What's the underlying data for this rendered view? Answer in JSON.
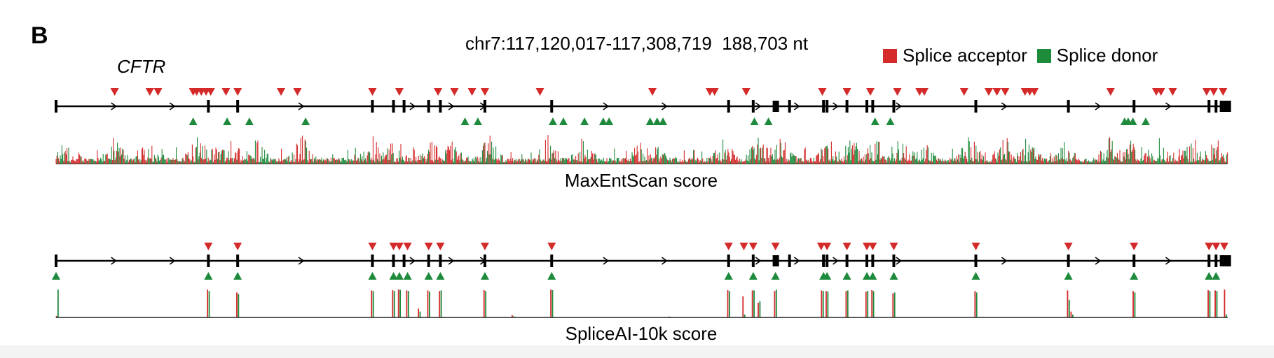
{
  "panel_label": "B",
  "coordinates": "chr7:117,120,017-117,308,719  188,703 nt",
  "gene_name": "CFTR",
  "legend": {
    "acceptor": "Splice acceptor",
    "donor": "Splice donor"
  },
  "colors": {
    "acceptor": "#d42a2a",
    "donor": "#1e8a3c",
    "line": "#000000"
  },
  "tracks": [
    {
      "id": "maxentscan",
      "label": "MaxEntScan score"
    },
    {
      "id": "spliceai",
      "label": "SpliceAI-10k score"
    }
  ],
  "chart_data": {
    "type": "track",
    "genomic_range": [
      "117,120,017",
      "117,308,719"
    ],
    "length_nt": 188703,
    "exons": [
      0.0,
      0.13,
      0.155,
      0.27,
      0.288,
      0.297,
      0.318,
      0.328,
      0.366,
      0.423,
      0.574,
      0.595,
      0.614,
      0.626,
      0.655,
      0.658,
      0.675,
      0.692,
      0.697,
      0.715,
      0.785,
      0.864,
      0.92,
      0.984,
      0.99,
      0.998
    ],
    "tracks": [
      {
        "name": "MaxEntScan score",
        "acceptors": [
          0.05,
          0.08,
          0.087,
          0.117,
          0.12,
          0.124,
          0.128,
          0.132,
          0.145,
          0.155,
          0.192,
          0.206,
          0.27,
          0.293,
          0.326,
          0.34,
          0.355,
          0.366,
          0.413,
          0.509,
          0.558,
          0.562,
          0.589,
          0.654,
          0.675,
          0.695,
          0.718,
          0.737,
          0.741,
          0.775,
          0.796,
          0.803,
          0.81,
          0.827,
          0.831,
          0.835,
          0.9,
          0.939,
          0.943,
          0.953,
          0.982,
          0.988,
          0.996
        ],
        "donors": [
          0.117,
          0.146,
          0.165,
          0.213,
          0.349,
          0.36,
          0.424,
          0.433,
          0.451,
          0.467,
          0.472,
          0.507,
          0.513,
          0.518,
          0.596,
          0.608,
          0.699,
          0.712,
          0.912,
          0.915,
          0.919,
          0.93
        ]
      },
      {
        "name": "SpliceAI-10k score",
        "acceptors": [
          0.13,
          0.155,
          0.27,
          0.288,
          0.293,
          0.3,
          0.318,
          0.328,
          0.366,
          0.423,
          0.574,
          0.587,
          0.595,
          0.614,
          0.653,
          0.658,
          0.675,
          0.692,
          0.697,
          0.715,
          0.785,
          0.864,
          0.92,
          0.984,
          0.99,
          0.997
        ],
        "donors": [
          0.0,
          0.13,
          0.155,
          0.27,
          0.288,
          0.293,
          0.3,
          0.318,
          0.328,
          0.366,
          0.423,
          0.574,
          0.595,
          0.614,
          0.655,
          0.658,
          0.675,
          0.692,
          0.697,
          0.715,
          0.785,
          0.864,
          0.92,
          0.984,
          0.99
        ]
      }
    ],
    "spliceai_peaks": [
      {
        "x": 0.001,
        "acc": 0.05,
        "don": 0.95
      },
      {
        "x": 0.13,
        "acc": 0.95,
        "don": 0.9
      },
      {
        "x": 0.155,
        "acc": 0.85,
        "don": 0.8
      },
      {
        "x": 0.27,
        "acc": 0.92,
        "don": 0.9
      },
      {
        "x": 0.288,
        "acc": 0.93,
        "don": 0.9
      },
      {
        "x": 0.293,
        "acc": 0.95,
        "don": 0.94
      },
      {
        "x": 0.3,
        "acc": 0.92,
        "don": 0.9
      },
      {
        "x": 0.31,
        "acc": 0.3,
        "don": 0.2
      },
      {
        "x": 0.318,
        "acc": 0.92,
        "don": 0.88
      },
      {
        "x": 0.328,
        "acc": 0.9,
        "don": 0.92
      },
      {
        "x": 0.366,
        "acc": 0.93,
        "don": 0.9
      },
      {
        "x": 0.39,
        "acc": 0.08,
        "don": 0.04
      },
      {
        "x": 0.423,
        "acc": 0.95,
        "don": 0.93
      },
      {
        "x": 0.524,
        "acc": 0.03,
        "don": 0.02
      },
      {
        "x": 0.574,
        "acc": 0.93,
        "don": 0.9
      },
      {
        "x": 0.587,
        "acc": 0.72,
        "don": 0.1
      },
      {
        "x": 0.595,
        "acc": 0.92,
        "don": 0.92
      },
      {
        "x": 0.6,
        "acc": 0.5,
        "don": 0.55
      },
      {
        "x": 0.614,
        "acc": 0.9,
        "don": 0.95
      },
      {
        "x": 0.654,
        "acc": 0.92,
        "don": 0.9
      },
      {
        "x": 0.658,
        "acc": 0.9,
        "don": 0.88
      },
      {
        "x": 0.675,
        "acc": 0.9,
        "don": 0.92
      },
      {
        "x": 0.692,
        "acc": 0.88,
        "don": 0.9
      },
      {
        "x": 0.697,
        "acc": 0.93,
        "don": 0.9
      },
      {
        "x": 0.715,
        "acc": 0.82,
        "don": 0.85
      },
      {
        "x": 0.785,
        "acc": 0.9,
        "don": 0.85
      },
      {
        "x": 0.864,
        "acc": 0.92,
        "don": 0.6
      },
      {
        "x": 0.867,
        "acc": 0.2,
        "don": 0.1
      },
      {
        "x": 0.92,
        "acc": 0.9,
        "don": 0.85
      },
      {
        "x": 0.984,
        "acc": 0.93,
        "don": 0.9
      },
      {
        "x": 0.99,
        "acc": 0.92,
        "don": 0.9
      },
      {
        "x": 0.998,
        "acc": 0.95,
        "don": 0.1
      }
    ],
    "maxentscan_hotspots": [
      0.01,
      0.05,
      0.08,
      0.12,
      0.13,
      0.15,
      0.17,
      0.21,
      0.27,
      0.29,
      0.32,
      0.34,
      0.37,
      0.42,
      0.45,
      0.5,
      0.51,
      0.57,
      0.6,
      0.62,
      0.66,
      0.68,
      0.7,
      0.72,
      0.74,
      0.78,
      0.81,
      0.83,
      0.86,
      0.9,
      0.92,
      0.94,
      0.97,
      0.99
    ]
  }
}
